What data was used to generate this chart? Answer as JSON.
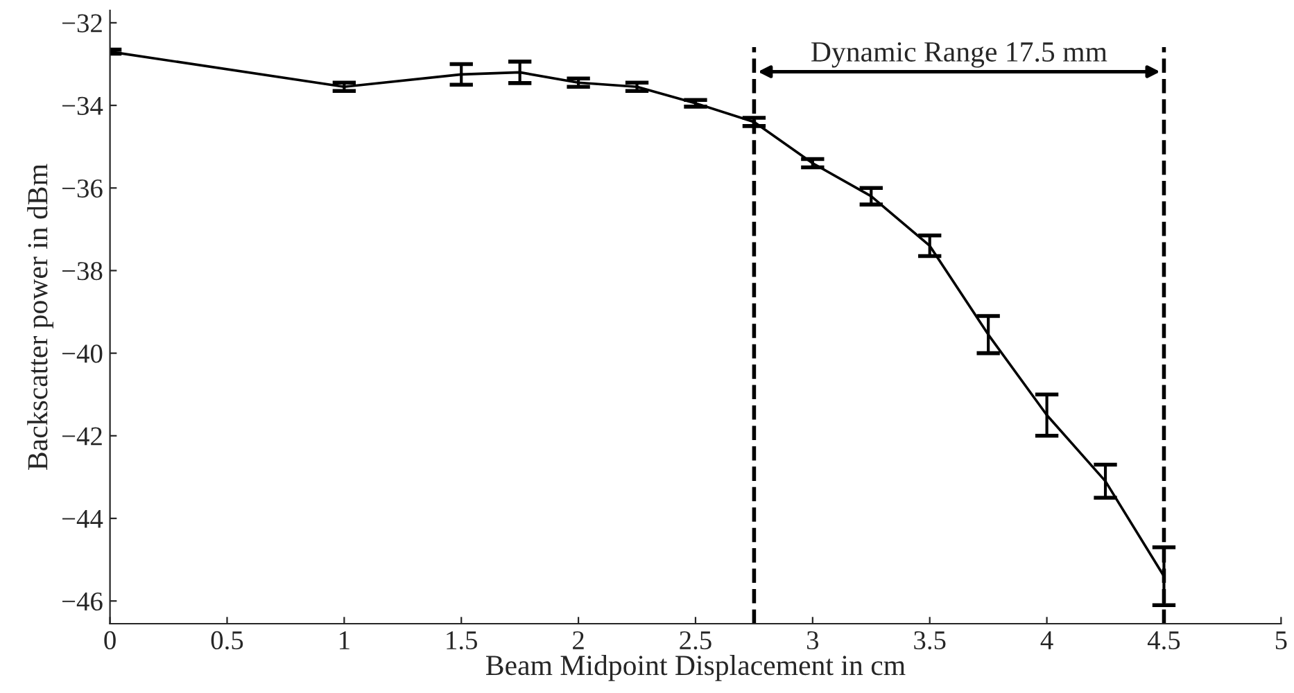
{
  "chart_data": {
    "type": "line",
    "xlabel": "Beam Midpoint Displacement in cm",
    "ylabel": "Backscatter power in dBm",
    "x": [
      0,
      1,
      1.5,
      1.75,
      2,
      2.25,
      2.5,
      2.75,
      3,
      3.25,
      3.5,
      3.75,
      4,
      4.25,
      4.5
    ],
    "series": [
      {
        "color": "#000000",
        "values": [
          -32.7,
          -33.55,
          -33.25,
          -33.2,
          -33.45,
          -33.55,
          -33.95,
          -34.4,
          -35.4,
          -36.2,
          -37.4,
          -39.55,
          -41.5,
          -43.1,
          -45.4
        ],
        "errors": [
          0.05,
          0.1,
          0.25,
          0.26,
          0.1,
          0.1,
          0.08,
          0.1,
          0.1,
          0.2,
          0.25,
          0.45,
          0.5,
          0.4,
          0.7
        ]
      }
    ],
    "xlim": [
      0,
      5
    ],
    "xticks": [
      0,
      0.5,
      1,
      1.5,
      2,
      2.5,
      3,
      3.5,
      4,
      4.5,
      5
    ],
    "ylim": [
      -46.55,
      -31.7
    ],
    "yticks": [
      -46,
      -44,
      -42,
      -40,
      -38,
      -36,
      -34,
      -32
    ],
    "ref_lines": [
      {
        "axis": "x",
        "value": 2.75,
        "color": "#000000",
        "line_style": "dashed"
      },
      {
        "axis": "x",
        "value": 4.5,
        "color": "#000000",
        "line_style": "dashed"
      }
    ],
    "annotations": [
      "Dynamic Range 17.5 mm"
    ],
    "grid": false,
    "marker": "none",
    "line_style": "solid"
  }
}
